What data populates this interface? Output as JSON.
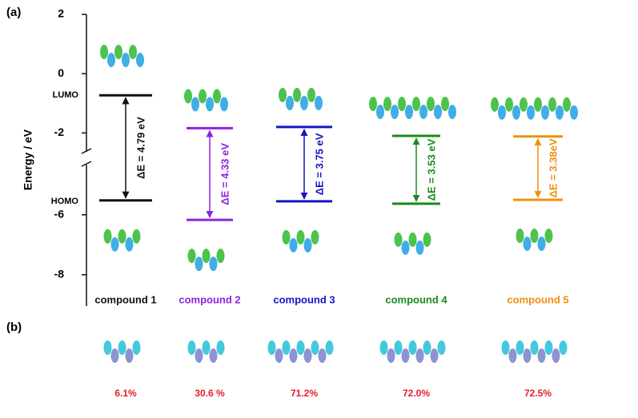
{
  "chart_data": {
    "type": "energy-levels",
    "panel_labels": [
      "(a)",
      "(b)"
    ],
    "ylabel": "Energy / eV",
    "level_names": [
      "LUMO",
      "HOMO"
    ],
    "upper": {
      "ylim": [
        -2.8,
        2
      ],
      "yticks": [
        2,
        0,
        -2
      ]
    },
    "lower": {
      "ylim": [
        -9.1,
        -4.3
      ],
      "yticks": [
        -6,
        -8
      ]
    },
    "categories": [
      "compound 1",
      "compound 2",
      "compound 3",
      "compound 4",
      "compound 5"
    ],
    "colors": [
      "#111111",
      "#9020e0",
      "#1414c8",
      "#1a8a1a",
      "#f0900a"
    ],
    "lumo": [
      -0.73,
      -1.84,
      -1.8,
      -2.1,
      -2.12
    ],
    "homo": [
      -5.52,
      -6.17,
      -5.55,
      -5.63,
      -5.5
    ],
    "gap_labels": [
      "ΔE = 4.79 eV",
      "ΔE = 4.33 eV",
      "ΔE = 3.75 eV",
      "ΔE = 3.53 eV",
      "ΔE = 3.38eV"
    ],
    "contributions": [
      "6.1%",
      "30.6 %",
      "71.2%",
      "72.0%",
      "72.5%"
    ]
  }
}
